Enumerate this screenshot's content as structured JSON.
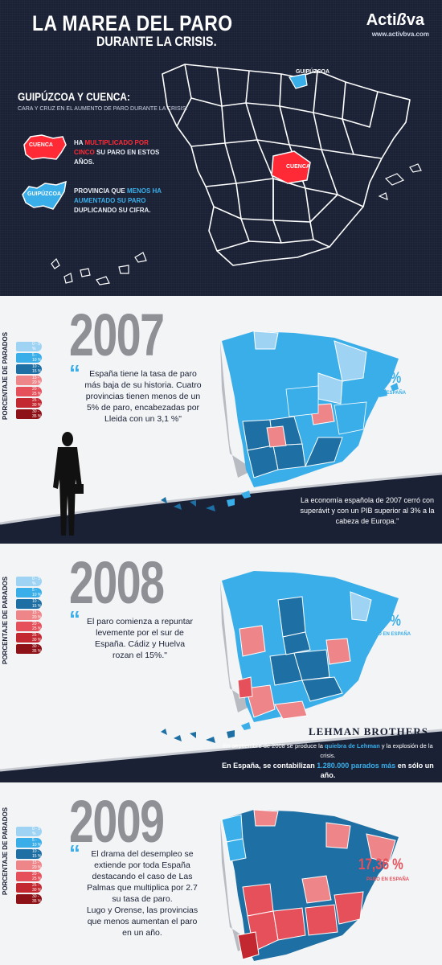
{
  "header": {
    "title": "LA MAREA DEL PARO",
    "subtitle": "DURANTE LA CRISIS.",
    "logo": "Acti",
    "logo_mid": "ß",
    "logo_end": "va",
    "logo_url": "www.activbva.com"
  },
  "intro": {
    "title": "GUIPÚZCOA Y CUENCA:",
    "subtitle": "CARA Y CRUZ EN EL AUMENTO DE PARO DURANTE LA CRISIS.",
    "cuenca_badge": "CUENCA",
    "cuenca_text_pre": "HA ",
    "cuenca_text_hl": "MULTIPLICADO POR CINCO",
    "cuenca_text_post": " SU PARO EN ESTOS AÑOS.",
    "guipuzcoa_badge": "GUIPÚZCOA",
    "guipuzcoa_text_pre": "PROVINCIA QUE ",
    "guipuzcoa_text_hl": "MENOS HA AUMENTADO SU PARO",
    "guipuzcoa_text_post": " DUPLICANDO SU CIFRA.",
    "map_label_guipuzcoa": "GUIPÚZCOA",
    "map_label_cuenca": "CUENCA"
  },
  "legend": {
    "vertical_label": "PORCENTAJE DE PARADOS",
    "ranges": [
      "0 - 5 %",
      "5 - 10 %",
      "10 - 15 %",
      "15 - 20 %",
      "20 - 25 %",
      "25 - 30 %",
      "30 - 35 %"
    ]
  },
  "colors": {
    "c1": "#9ed3f3",
    "c2": "#3aaee9",
    "c3": "#1e6fa3",
    "c4": "#ee8589",
    "c5": "#e5505a",
    "c6": "#c3272f",
    "c7": "#8e1117",
    "navy": "#1a2135",
    "red": "#ff2a35",
    "blue": "#3aaee9"
  },
  "panels": [
    {
      "year": "2007",
      "quote": "España tiene la tasa de paro más baja de su historia. Cuatro provincias tienen menos de un 5% de paro, encabezadas por Lleida con un 3,1 %\"",
      "rate": "8,50 %",
      "rate_label": "PARO EN ESPAÑA",
      "note": "La economía española de 2007 cerró con superávit y con un PIB superior al 3% a la cabeza de Europa.\""
    },
    {
      "year": "2008",
      "quote": "El paro comienza a repuntar levemente por el sur de España. Cádiz y Huelva rozan el 15%.\"",
      "rate": "9,6 %",
      "rate_label": "PARO EN ESPAÑA",
      "lehman": "LEHMAN BROTHERS",
      "note_line1_pre": "En septiembre de 2008 se produce la ",
      "note_line1_hl": "quiebra de Lehman",
      "note_line1_post": " y la explosión de la crisis.",
      "note_line2_pre": "En España, se contabilizan ",
      "note_line2_hl": "1.280.000 parados más",
      "note_line2_post": " en sólo un año."
    },
    {
      "year": "2009",
      "quote": "El drama del desempleo se extiende por toda España destacando el caso de Las Palmas que multiplica por 2.7 su tasa de paro.",
      "quote2": "Lugo y Orense, las provincias que menos aumentan el paro en un año.",
      "rate": "17,36 %",
      "rate_label": "PARO EN ESPAÑA"
    }
  ]
}
